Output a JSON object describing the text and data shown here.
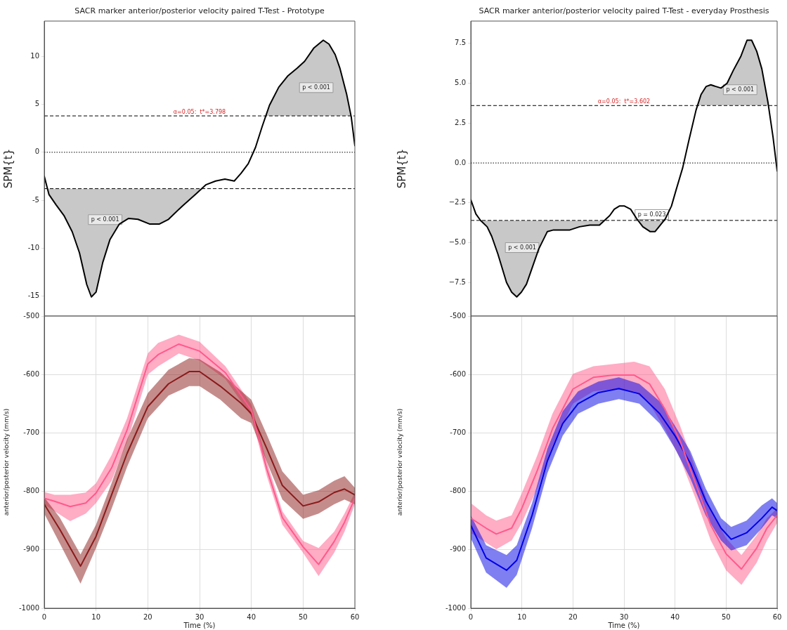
{
  "chart_data": [
    {
      "type": "line",
      "title": "SACR marker anterior/posterior velocity paired T-Test - Prototype",
      "ylabel": "SPM{t}",
      "xlim": [
        0,
        60
      ],
      "ylim": [
        -17.1,
        13.7
      ],
      "yticks": [
        -15,
        -10,
        -5,
        0,
        5,
        10
      ],
      "tick_labels": "y",
      "grid": false,
      "legend": false,
      "marker": "none",
      "x": [
        0,
        0.9,
        2.3,
        3.8,
        5.4,
        6.8,
        8.2,
        9.1,
        10,
        11.3,
        12.7,
        14.5,
        16.3,
        18.1,
        20.4,
        22.2,
        24,
        26.7,
        29.4,
        31.2,
        33.1,
        34.9,
        36.7,
        38,
        39.4,
        40.8,
        42.1,
        43.5,
        45.3,
        47.1,
        48.9,
        50.3,
        52.1,
        53.9,
        55,
        56.2,
        57.1,
        58.4,
        59.3,
        60
      ],
      "series": [
        {
          "color": "#000000",
          "values": [
            -2.5,
            -4.4,
            -5.5,
            -6.6,
            -8.3,
            -10.5,
            -13.8,
            -15.1,
            -14.6,
            -11.5,
            -9.1,
            -7.5,
            -6.9,
            -7,
            -7.5,
            -7.5,
            -7,
            -5.6,
            -4.3,
            -3.4,
            -3,
            -2.8,
            -3,
            -2.2,
            -1.2,
            0.5,
            2.7,
            4.9,
            6.8,
            8,
            8.8,
            9.5,
            10.9,
            11.7,
            11.3,
            10.2,
            8.8,
            6.1,
            3.7,
            0.7
          ]
        }
      ],
      "ref_lines": [
        {
          "axis": "y",
          "value": 3.798,
          "label": "α=0.05:  t*=3.798",
          "color": "#000000",
          "line_style": "dashed"
        },
        {
          "axis": "y",
          "value": -3.798,
          "color": "#000000",
          "line_style": "dashed"
        },
        {
          "axis": "y",
          "value": 0,
          "color": "#000000",
          "line_style": "dotted"
        }
      ],
      "annotations": [
        "p < 0.001",
        "p < 0.001"
      ]
    },
    {
      "type": "line",
      "title": "SACR marker anterior/posterior velocity paired T-Test - everyday Prosthesis",
      "ylabel": "SPM{t}",
      "xlim": [
        0,
        60
      ],
      "ylim": [
        -9.6,
        8.9
      ],
      "yticks": [
        {
          "value": -7.5,
          "label": "−7.5"
        },
        {
          "value": -5,
          "label": "−5.0"
        },
        {
          "value": -2.5,
          "label": "−2.5"
        },
        {
          "value": 0,
          "label": "0.0"
        },
        {
          "value": 2.5,
          "label": "2.5"
        },
        {
          "value": 5,
          "label": "5.0"
        },
        {
          "value": 7.5,
          "label": "7.5"
        }
      ],
      "tick_labels": "y",
      "grid": false,
      "legend": false,
      "marker": "none",
      "x": [
        0,
        1,
        1.9,
        3.2,
        4.1,
        5.3,
        7,
        8,
        9,
        9.9,
        10.9,
        12.1,
        13.3,
        15,
        16.2,
        17.9,
        19.4,
        21.3,
        23.3,
        25.2,
        26.2,
        27.2,
        28.1,
        29.1,
        30.1,
        31.3,
        32.5,
        33.7,
        35.1,
        36.1,
        37.1,
        38.1,
        39.3,
        40.2,
        41.5,
        42.7,
        44.1,
        45.1,
        46.1,
        47,
        48,
        49,
        50.2,
        51.4,
        52.9,
        54.1,
        55,
        56,
        57,
        58.2,
        59.2,
        60
      ],
      "series": [
        {
          "color": "#000000",
          "values": [
            -2.3,
            -3.2,
            -3.6,
            -4,
            -4.6,
            -5.7,
            -7.5,
            -8.1,
            -8.4,
            -8.1,
            -7.6,
            -6.5,
            -5.4,
            -4.3,
            -4.2,
            -4.2,
            -4.2,
            -4,
            -3.9,
            -3.9,
            -3.6,
            -3.3,
            -2.9,
            -2.7,
            -2.7,
            -2.9,
            -3.5,
            -4,
            -4.3,
            -4.3,
            -3.9,
            -3.5,
            -2.7,
            -1.7,
            -0.3,
            1.4,
            3.3,
            4.3,
            4.8,
            4.9,
            4.8,
            4.7,
            5,
            5.8,
            6.7,
            7.7,
            7.7,
            7,
            5.9,
            3.8,
            1.6,
            -0.5
          ]
        }
      ],
      "ref_lines": [
        {
          "axis": "y",
          "value": 3.602,
          "label": "α=0.05:  t*=3.602",
          "color": "#000000",
          "line_style": "dashed"
        },
        {
          "axis": "y",
          "value": -3.602,
          "color": "#000000",
          "line_style": "dashed"
        },
        {
          "axis": "y",
          "value": 0,
          "color": "#000000",
          "line_style": "dotted"
        }
      ],
      "annotations": [
        "p < 0.001",
        "p = 0.023",
        "p < 0.001"
      ]
    },
    {
      "type": "line",
      "xlabel": "Time (%)",
      "ylabel": "anterior/posterior velocity (mm/s)",
      "xlim": [
        0,
        60
      ],
      "xticks": [
        0,
        10,
        20,
        30,
        40,
        50,
        60
      ],
      "ylim": [
        -1000,
        -500
      ],
      "yticks": [
        -1000,
        -900,
        -800,
        -700,
        -600,
        -500
      ],
      "grid": true,
      "legend": false,
      "marker": "none",
      "series": [
        {
          "color": "#ff5a8c",
          "x": [
            0,
            2,
            5,
            8,
            10,
            13,
            16,
            20,
            22,
            26,
            30,
            35,
            40,
            43,
            46,
            50,
            53,
            56,
            58,
            60
          ],
          "values": [
            -812,
            -817,
            -826,
            -820,
            -803,
            -760,
            -695,
            -582,
            -566,
            -548,
            -560,
            -597,
            -661,
            -762,
            -845,
            -895,
            -925,
            -886,
            -853,
            -812
          ],
          "lower": [
            -822,
            -834,
            -851,
            -838,
            -820,
            -782,
            -715,
            -600,
            -586,
            -564,
            -576,
            -608,
            -671,
            -774,
            -857,
            -905,
            -945,
            -905,
            -869,
            -822
          ],
          "upper": [
            -801,
            -806,
            -806,
            -802,
            -786,
            -738,
            -675,
            -564,
            -546,
            -532,
            -544,
            -586,
            -651,
            -750,
            -834,
            -885,
            -897,
            -869,
            -838,
            -802
          ]
        },
        {
          "color": "#8b1a1a",
          "x": [
            0,
            3,
            7,
            10,
            13,
            16,
            20,
            24,
            28,
            30,
            34,
            38,
            40,
            43,
            46,
            50,
            53,
            56,
            58,
            60
          ],
          "values": [
            -822,
            -865,
            -928,
            -877,
            -806,
            -735,
            -655,
            -616,
            -595,
            -595,
            -620,
            -649,
            -667,
            -727,
            -790,
            -825,
            -818,
            -802,
            -796,
            -806
          ],
          "lower": [
            -838,
            -889,
            -958,
            -897,
            -830,
            -758,
            -675,
            -636,
            -620,
            -620,
            -643,
            -675,
            -683,
            -750,
            -814,
            -847,
            -838,
            -822,
            -814,
            -822
          ],
          "upper": [
            -810,
            -845,
            -908,
            -857,
            -786,
            -711,
            -632,
            -592,
            -572,
            -574,
            -596,
            -628,
            -643,
            -703,
            -766,
            -806,
            -798,
            -782,
            -774,
            -794
          ]
        }
      ]
    },
    {
      "type": "line",
      "xlabel": "Time (%)",
      "ylabel": "anterior/posterior velocity (mm/s)",
      "xlim": [
        0,
        60
      ],
      "xticks": [
        0,
        10,
        20,
        30,
        40,
        50,
        60
      ],
      "ylim": [
        -1000,
        -500
      ],
      "yticks": [
        -1000,
        -900,
        -800,
        -700,
        -600,
        -500
      ],
      "grid": true,
      "legend": false,
      "marker": "none",
      "series": [
        {
          "color": "#ff5a8c",
          "x": [
            0,
            3,
            5,
            8,
            10,
            13,
            16,
            20,
            24,
            28,
            32,
            35,
            38,
            41,
            44,
            47,
            50,
            53,
            56,
            58,
            60
          ],
          "values": [
            -846,
            -863,
            -873,
            -863,
            -829,
            -765,
            -693,
            -625,
            -605,
            -601,
            -601,
            -616,
            -659,
            -714,
            -786,
            -858,
            -907,
            -933,
            -897,
            -863,
            -841
          ],
          "lower": [
            -871,
            -888,
            -899,
            -884,
            -854,
            -795,
            -722,
            -650,
            -629,
            -625,
            -629,
            -650,
            -693,
            -744,
            -812,
            -884,
            -935,
            -960,
            -922,
            -884,
            -854
          ],
          "upper": [
            -820,
            -841,
            -850,
            -841,
            -803,
            -739,
            -667,
            -599,
            -586,
            -582,
            -578,
            -586,
            -625,
            -688,
            -761,
            -833,
            -880,
            -909,
            -875,
            -846,
            -829
          ]
        },
        {
          "color": "#0000e6",
          "x": [
            0,
            3,
            7,
            9,
            12,
            15,
            18,
            21,
            25,
            29,
            33,
            37,
            40,
            43,
            46,
            49,
            51,
            54,
            57,
            59,
            60
          ],
          "values": [
            -858,
            -914,
            -935,
            -918,
            -841,
            -748,
            -684,
            -650,
            -631,
            -624,
            -633,
            -667,
            -705,
            -752,
            -816,
            -863,
            -882,
            -871,
            -846,
            -827,
            -833
          ],
          "lower": [
            -880,
            -939,
            -965,
            -943,
            -863,
            -769,
            -705,
            -667,
            -650,
            -642,
            -650,
            -684,
            -727,
            -778,
            -841,
            -884,
            -901,
            -892,
            -863,
            -841,
            -846
          ],
          "upper": [
            -841,
            -892,
            -909,
            -892,
            -820,
            -727,
            -663,
            -629,
            -612,
            -605,
            -616,
            -646,
            -688,
            -731,
            -795,
            -846,
            -861,
            -850,
            -824,
            -812,
            -820
          ]
        }
      ]
    }
  ]
}
